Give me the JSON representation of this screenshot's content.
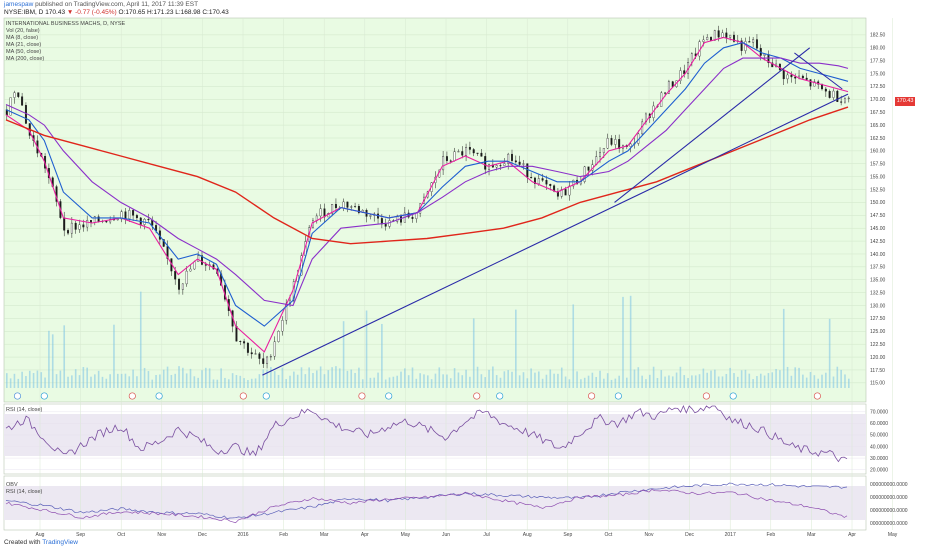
{
  "header": {
    "user": "jamespaw",
    "published": "published on TradingView.com, April 11, 2017 11:39 EST",
    "quote_prefix": "NYSE:IBM, D",
    "last": "170.43",
    "change": "▼ -0.77 (-0.45%)",
    "ohlc": "O:170.65 H:171.23 L:168.98 C:170.43"
  },
  "legend_main": [
    "INTERNATIONAL BUSINESS MACHS, D, NYSE",
    "Vol (20, false)",
    "MA (8, close)",
    "MA (21, close)",
    "MA (50, close)",
    "MA (200, close)"
  ],
  "legend_rsi": "RSI (14, close)",
  "legend_obv": [
    "OBV",
    "RSI (14, close)"
  ],
  "price_tag": "170.43",
  "footer": {
    "created_with": "Created with",
    "brand": "TradingView"
  },
  "colors": {
    "panel_bg": "#e9fbe3",
    "ma8": "#e91ea0",
    "ma21": "#1f5fd0",
    "ma50": "#8b2fc9",
    "ma200": "#e0261b",
    "trendline": "#2a2aa8",
    "volume": "#7cc3e5",
    "rsi": "#7a4fa0",
    "candle": "#1b1b1b"
  },
  "chart_data": [
    {
      "type": "line",
      "title": "INTERNATIONAL BUSINESS MACHS, D, NYSE",
      "x_ticks": [
        "Aug",
        "Sep",
        "Oct",
        "Nov",
        "Dec",
        "2016",
        "Feb",
        "Mar",
        "Apr",
        "May",
        "Jun",
        "Jul",
        "Aug",
        "Sep",
        "Oct",
        "Nov",
        "Dec",
        "2017",
        "Feb",
        "Mar",
        "Apr",
        "May"
      ],
      "y_ticks": [
        "182.50",
        "180.00",
        "177.50",
        "175.00",
        "172.50",
        "170.00",
        "167.50",
        "165.00",
        "162.50",
        "160.00",
        "157.50",
        "155.00",
        "152.50",
        "150.00",
        "147.50",
        "145.00",
        "142.50",
        "140.00",
        "137.50",
        "135.00",
        "132.50",
        "130.00",
        "127.50",
        "125.00",
        "122.50",
        "120.00",
        "117.50",
        "115.00"
      ],
      "ylim": [
        114.0,
        185.0
      ],
      "x_index_range": [
        0,
        440
      ],
      "series": [
        {
          "name": "Price",
          "x": [
            0,
            5,
            12,
            20,
            30,
            45,
            60,
            75,
            90,
            100,
            110,
            120,
            135,
            150,
            160,
            175,
            200,
            215,
            228,
            240,
            252,
            262,
            275,
            288,
            300,
            315,
            325,
            335,
            345,
            355,
            365,
            375,
            385,
            390,
            395,
            400,
            405,
            410,
            415,
            420,
            425,
            430,
            435,
            440
          ],
          "values": [
            168,
            173,
            163,
            157,
            145,
            146,
            148,
            146,
            134,
            139,
            137,
            124,
            118,
            134,
            147,
            150,
            146,
            148,
            158,
            160,
            157,
            159,
            155,
            151,
            155,
            162,
            160,
            167,
            172,
            176,
            182,
            183,
            180,
            181,
            178,
            177,
            175,
            174,
            174,
            173,
            172,
            171,
            170.5,
            170.43
          ]
        },
        {
          "name": "MA (8, close)",
          "x": [
            0,
            12,
            20,
            30,
            45,
            60,
            75,
            90,
            100,
            110,
            120,
            135,
            150,
            160,
            175,
            200,
            215,
            228,
            240,
            252,
            262,
            275,
            288,
            300,
            315,
            325,
            335,
            345,
            355,
            365,
            375,
            385,
            395,
            405,
            415,
            425,
            435,
            440
          ],
          "values": [
            167,
            164,
            158,
            147,
            146,
            147,
            145,
            136,
            139,
            137,
            126,
            121,
            133,
            146,
            149,
            147,
            148,
            157,
            159,
            157,
            158,
            154,
            152,
            154,
            160,
            161,
            166,
            171,
            175,
            181,
            182,
            181,
            178,
            176,
            174,
            173,
            172,
            171.5
          ]
        },
        {
          "name": "MA (21, close)",
          "x": [
            0,
            12,
            20,
            30,
            45,
            60,
            75,
            90,
            100,
            110,
            120,
            135,
            150,
            160,
            175,
            200,
            215,
            228,
            240,
            252,
            262,
            275,
            288,
            300,
            315,
            325,
            335,
            345,
            355,
            365,
            375,
            385,
            395,
            405,
            415,
            425,
            435,
            440
          ],
          "values": [
            168,
            166,
            162,
            152,
            147,
            147,
            146,
            139,
            140,
            138,
            130,
            126,
            131,
            144,
            149,
            147,
            148,
            153,
            157,
            158,
            158,
            156,
            154,
            154,
            158,
            160,
            164,
            168,
            172,
            177,
            180,
            181,
            179,
            178,
            176,
            175,
            174,
            173.5
          ]
        },
        {
          "name": "MA (50, close)",
          "x": [
            0,
            12,
            20,
            30,
            45,
            60,
            75,
            90,
            100,
            110,
            120,
            135,
            150,
            160,
            175,
            200,
            215,
            228,
            240,
            252,
            262,
            275,
            288,
            300,
            315,
            325,
            335,
            345,
            355,
            365,
            375,
            385,
            395,
            405,
            415,
            425,
            435,
            440
          ],
          "values": [
            169,
            167,
            165,
            160,
            154,
            150,
            147,
            143,
            141,
            139,
            136,
            131,
            130,
            139,
            145,
            146,
            148,
            151,
            154,
            156,
            157,
            157,
            156,
            155,
            156,
            158,
            161,
            164,
            168,
            172,
            176,
            178,
            178,
            178,
            177,
            177,
            176.5,
            176
          ]
        },
        {
          "name": "MA (200, close)",
          "x": [
            0,
            20,
            40,
            60,
            80,
            100,
            120,
            140,
            160,
            180,
            200,
            220,
            240,
            260,
            280,
            300,
            320,
            340,
            360,
            380,
            400,
            420,
            440
          ],
          "values": [
            166,
            163,
            161,
            159,
            157,
            155,
            152,
            147,
            143,
            142,
            142.5,
            143,
            144,
            145,
            147,
            150,
            152,
            154,
            157,
            160,
            163,
            166,
            168.5
          ]
        }
      ]
    },
    {
      "type": "line",
      "title": "RSI (14, close)",
      "y_ticks": [
        "70.0000",
        "60.0000",
        "50.0000",
        "40.0000",
        "30.0000",
        "20.0000"
      ],
      "ylim": [
        18,
        75
      ],
      "series": [
        {
          "name": "RSI (14, close)",
          "x": [
            0,
            10,
            20,
            30,
            40,
            50,
            60,
            70,
            80,
            90,
            100,
            110,
            120,
            130,
            140,
            150,
            160,
            170,
            180,
            190,
            200,
            210,
            220,
            230,
            240,
            250,
            260,
            270,
            280,
            290,
            300,
            310,
            320,
            330,
            340,
            350,
            360,
            370,
            380,
            390,
            400,
            410,
            420,
            430,
            440
          ],
          "values": [
            55,
            64,
            48,
            30,
            42,
            52,
            58,
            38,
            44,
            55,
            47,
            36,
            40,
            32,
            58,
            66,
            72,
            60,
            54,
            50,
            58,
            62,
            55,
            48,
            62,
            70,
            60,
            54,
            46,
            38,
            52,
            64,
            60,
            70,
            66,
            74,
            72,
            76,
            62,
            58,
            50,
            40,
            36,
            34,
            26
          ]
        }
      ]
    },
    {
      "type": "line",
      "title": "OBV",
      "y_ticks": [
        "000000000.0000",
        "000000000.0000",
        "000000000.0000",
        "000000000.0000"
      ],
      "series": [
        {
          "name": "OBV",
          "x": [
            0,
            20,
            40,
            60,
            80,
            100,
            120,
            140,
            160,
            180,
            200,
            220,
            240,
            260,
            280,
            300,
            320,
            340,
            360,
            380,
            400,
            420,
            440
          ],
          "values": [
            0.55,
            0.45,
            0.3,
            0.38,
            0.3,
            0.28,
            0.18,
            0.3,
            0.42,
            0.6,
            0.55,
            0.62,
            0.7,
            0.66,
            0.62,
            0.6,
            0.72,
            0.8,
            0.86,
            0.9,
            0.88,
            0.84,
            0.83
          ]
        },
        {
          "name": "RSI (14, close)",
          "x": [
            0,
            20,
            40,
            60,
            80,
            100,
            120,
            140,
            160,
            180,
            200,
            220,
            240,
            260,
            280,
            300,
            320,
            340,
            360,
            380,
            400,
            420,
            440
          ],
          "values": [
            0.5,
            0.35,
            0.2,
            0.32,
            0.28,
            0.22,
            0.12,
            0.42,
            0.6,
            0.5,
            0.58,
            0.62,
            0.7,
            0.55,
            0.4,
            0.62,
            0.66,
            0.78,
            0.7,
            0.72,
            0.55,
            0.42,
            0.2
          ]
        }
      ]
    }
  ]
}
